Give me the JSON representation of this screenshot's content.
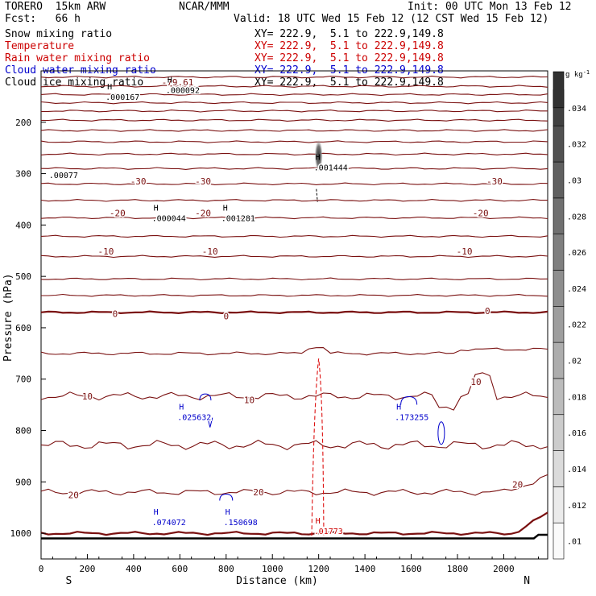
{
  "header": {
    "model": "TORERO  15km ARW",
    "center": "NCAR/MMM",
    "init": "Init: 00 UTC Mon 13 Feb 12",
    "fcst": "Fcst:   66 h",
    "valid": "Valid: 18 UTC Wed 15 Feb 12 (12 CST Wed 15 Feb 12)"
  },
  "fields": [
    {
      "name": "Snow mixing ratio",
      "xy": "XY= 222.9,  5.1 to 222.9,149.8",
      "color": "#000000"
    },
    {
      "name": "Temperature",
      "xy": "XY= 222.9,  5.1 to 222.9,149.8",
      "color": "#cc0000"
    },
    {
      "name": "Rain water mixing ratio",
      "xy": "XY= 222.9,  5.1 to 222.9,149.8",
      "color": "#cc0000"
    },
    {
      "name": "Cloud water mixing ratio",
      "xy": "XY= 222.9,  5.1 to 222.9,149.8",
      "color": "#0000cc"
    },
    {
      "name": "Cloud ice mixing ratio",
      "xy": "XY= 222.9,  5.1 to 222.9,149.8",
      "color": "#000000"
    }
  ],
  "chart_data": {
    "type": "cross-section contour",
    "xlabel": "Distance (km)",
    "ylabel": "Pressure (hPa)",
    "xlim": [
      0,
      2190
    ],
    "ylim": [
      1050,
      100
    ],
    "x_ticks": [
      0,
      200,
      400,
      600,
      800,
      1000,
      1200,
      1400,
      1600,
      1800,
      2000
    ],
    "y_ticks": [
      200,
      300,
      400,
      500,
      600,
      700,
      800,
      900,
      1000
    ],
    "x_ends": [
      "S",
      "N"
    ],
    "colorbar": {
      "unit": "g kg",
      "unit_exp": "-1",
      "ticks": [
        ".01",
        ".012",
        ".014",
        ".016",
        ".018",
        ".02",
        ".022",
        ".024",
        ".026",
        ".028",
        ".03",
        ".032",
        ".034"
      ]
    },
    "temperature_contour_labels": [
      {
        "value": "-79.61",
        "x": 590,
        "p": 122
      },
      {
        "value": "-30",
        "x": 420,
        "p": 315
      },
      {
        "value": "-30",
        "x": 700,
        "p": 315
      },
      {
        "value": "-30",
        "x": 1960,
        "p": 315
      },
      {
        "value": "-20",
        "x": 330,
        "p": 377
      },
      {
        "value": "-20",
        "x": 700,
        "p": 377
      },
      {
        "value": "-20",
        "x": 1900,
        "p": 377
      },
      {
        "value": "-10",
        "x": 280,
        "p": 451
      },
      {
        "value": "-10",
        "x": 730,
        "p": 451
      },
      {
        "value": "-10",
        "x": 1830,
        "p": 451
      },
      {
        "value": "0",
        "x": 320,
        "p": 573
      },
      {
        "value": "0",
        "x": 800,
        "p": 577
      },
      {
        "value": "0",
        "x": 1930,
        "p": 567
      },
      {
        "value": "10",
        "x": 200,
        "p": 733
      },
      {
        "value": "10",
        "x": 900,
        "p": 740
      },
      {
        "value": "10",
        "x": 1880,
        "p": 705
      },
      {
        "value": "20",
        "x": 140,
        "p": 925
      },
      {
        "value": "20",
        "x": 940,
        "p": 920
      },
      {
        "value": "20",
        "x": 2060,
        "p": 905
      }
    ],
    "maxima": [
      {
        "field": "snow",
        "label": ".000167",
        "x": 300,
        "p": 150
      },
      {
        "field": "snow",
        "label": ".000092",
        "x": 560,
        "p": 137
      },
      {
        "field": "snow",
        "label": ".001444",
        "x": 1200,
        "p": 287
      },
      {
        "field": "snow",
        "label": ".000044",
        "x": 500,
        "p": 386
      },
      {
        "field": "snow",
        "label": ".001281",
        "x": 800,
        "p": 386
      },
      {
        "field": "ice",
        "label": ".00077",
        "x": 55,
        "p": 302
      },
      {
        "field": "cloud_water",
        "label": ".025632",
        "x": 610,
        "p": 773
      },
      {
        "field": "cloud_water",
        "label": ".173255",
        "x": 1550,
        "p": 773
      },
      {
        "field": "cloud_water",
        "label": ".074072",
        "x": 500,
        "p": 978
      },
      {
        "field": "cloud_water",
        "label": ".150698",
        "x": 810,
        "p": 978
      },
      {
        "field": "rain",
        "label": ".01773",
        "x": 1200,
        "p": 995
      }
    ]
  }
}
